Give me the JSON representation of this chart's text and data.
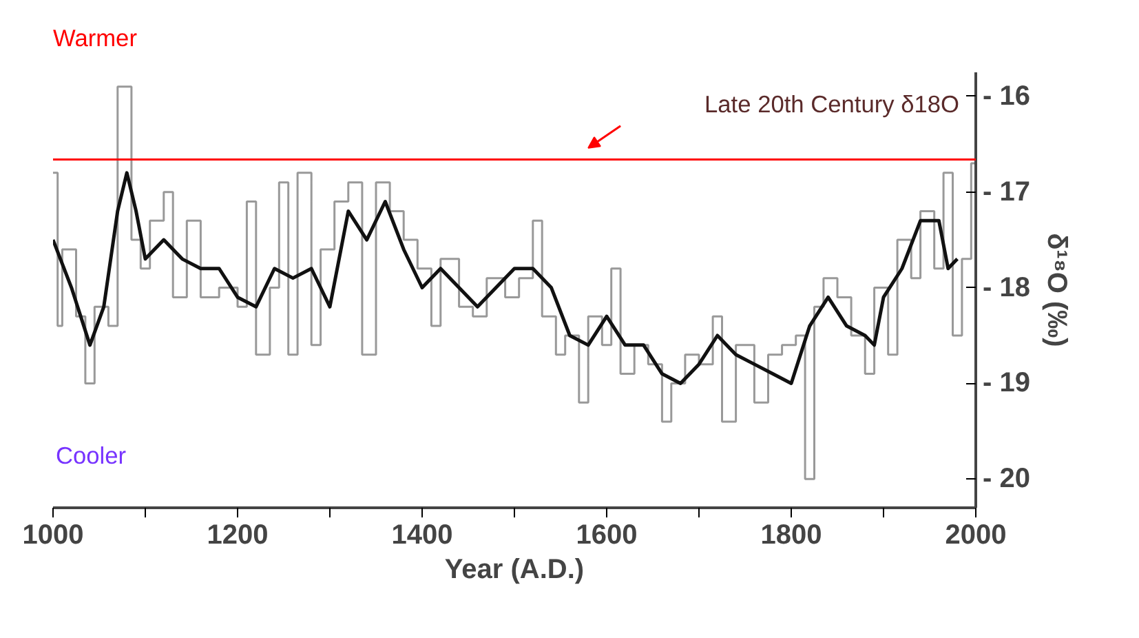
{
  "chart_data": {
    "type": "line",
    "xlabel": "Year (A.D.)",
    "ylabel": "δ¹⁸O (‰)",
    "xlim": [
      1000,
      2000
    ],
    "ylim": [
      -20.3,
      -15.75
    ],
    "xticks": [
      1000,
      {
        "value": 1100,
        "label": null
      },
      1200,
      {
        "value": 1300,
        "label": null
      },
      1400,
      {
        "value": 1500,
        "label": null
      },
      1600,
      {
        "value": 1700,
        "label": null
      },
      1800,
      {
        "value": 1900,
        "label": null
      },
      2000
    ],
    "yticks": [
      {
        "value": -16,
        "label": "- 16"
      },
      {
        "value": -17,
        "label": "- 17"
      },
      {
        "value": -18,
        "label": "- 18"
      },
      {
        "value": -19,
        "label": "- 19"
      },
      {
        "value": -20,
        "label": "- 20"
      }
    ],
    "grid": false,
    "annotations": [
      "Warmer",
      "Cooler"
    ],
    "ref_lines": [
      {
        "axis": "y",
        "value": -16.66,
        "label": "Late 20th Century δ18O",
        "color": "#ff0000"
      }
    ],
    "series": [
      {
        "type": "step",
        "color": "#999999",
        "x": [
          1000,
          1005,
          1010,
          1025,
          1035,
          1045,
          1060,
          1070,
          1085,
          1095,
          1105,
          1120,
          1130,
          1145,
          1160,
          1180,
          1200,
          1210,
          1220,
          1235,
          1245,
          1255,
          1265,
          1280,
          1290,
          1305,
          1320,
          1335,
          1350,
          1365,
          1380,
          1395,
          1410,
          1420,
          1440,
          1455,
          1470,
          1490,
          1505,
          1520,
          1530,
          1545,
          1555,
          1570,
          1580,
          1595,
          1605,
          1615,
          1630,
          1645,
          1660,
          1670,
          1685,
          1700,
          1715,
          1725,
          1740,
          1760,
          1775,
          1790,
          1805,
          1815,
          1825,
          1835,
          1850,
          1865,
          1880,
          1890,
          1905,
          1915,
          1930,
          1940,
          1955,
          1965,
          1975,
          1985,
          1995,
          2000
        ],
        "values": [
          -16.8,
          -18.4,
          -17.6,
          -18.3,
          -19.0,
          -18.2,
          -18.4,
          -15.9,
          -17.5,
          -17.8,
          -17.3,
          -17.0,
          -18.1,
          -17.3,
          -18.1,
          -18.0,
          -18.2,
          -17.1,
          -18.7,
          -18.0,
          -16.9,
          -18.7,
          -16.8,
          -18.6,
          -17.6,
          -17.1,
          -16.9,
          -18.7,
          -16.9,
          -17.2,
          -17.5,
          -17.8,
          -18.4,
          -17.7,
          -18.2,
          -18.3,
          -17.9,
          -18.1,
          -17.9,
          -17.3,
          -18.3,
          -18.7,
          -18.5,
          -19.2,
          -18.3,
          -18.6,
          -17.8,
          -18.9,
          -18.6,
          -18.8,
          -19.4,
          -19.0,
          -18.7,
          -18.8,
          -18.3,
          -19.4,
          -18.6,
          -19.2,
          -18.7,
          -18.6,
          -18.5,
          -20.0,
          -18.2,
          -17.9,
          -18.1,
          -18.5,
          -18.9,
          -18.0,
          -18.7,
          -17.5,
          -17.9,
          -17.2,
          -17.8,
          -16.8,
          -18.5,
          -17.7,
          -16.7,
          -16.7
        ]
      },
      {
        "color": "#111111",
        "x": [
          1000,
          1020,
          1040,
          1055,
          1070,
          1080,
          1090,
          1100,
          1120,
          1140,
          1160,
          1180,
          1200,
          1220,
          1240,
          1260,
          1280,
          1300,
          1320,
          1340,
          1360,
          1380,
          1400,
          1420,
          1440,
          1460,
          1480,
          1500,
          1520,
          1540,
          1560,
          1580,
          1600,
          1620,
          1640,
          1660,
          1680,
          1700,
          1720,
          1740,
          1760,
          1780,
          1800,
          1820,
          1840,
          1860,
          1880,
          1890,
          1900,
          1920,
          1940,
          1960,
          1970,
          1980
        ],
        "values": [
          -17.5,
          -18.0,
          -18.6,
          -18.2,
          -17.2,
          -16.8,
          -17.2,
          -17.7,
          -17.5,
          -17.7,
          -17.8,
          -17.8,
          -18.1,
          -18.2,
          -17.8,
          -17.9,
          -17.8,
          -18.2,
          -17.2,
          -17.5,
          -17.1,
          -17.6,
          -18.0,
          -17.8,
          -18.0,
          -18.2,
          -18.0,
          -17.8,
          -17.8,
          -18.0,
          -18.5,
          -18.6,
          -18.3,
          -18.6,
          -18.6,
          -18.9,
          -19.0,
          -18.8,
          -18.5,
          -18.7,
          -18.8,
          -18.9,
          -19.0,
          -18.4,
          -18.1,
          -18.4,
          -18.5,
          -18.6,
          -18.1,
          -17.8,
          -17.3,
          -17.3,
          -17.8,
          -17.7
        ]
      }
    ]
  }
}
